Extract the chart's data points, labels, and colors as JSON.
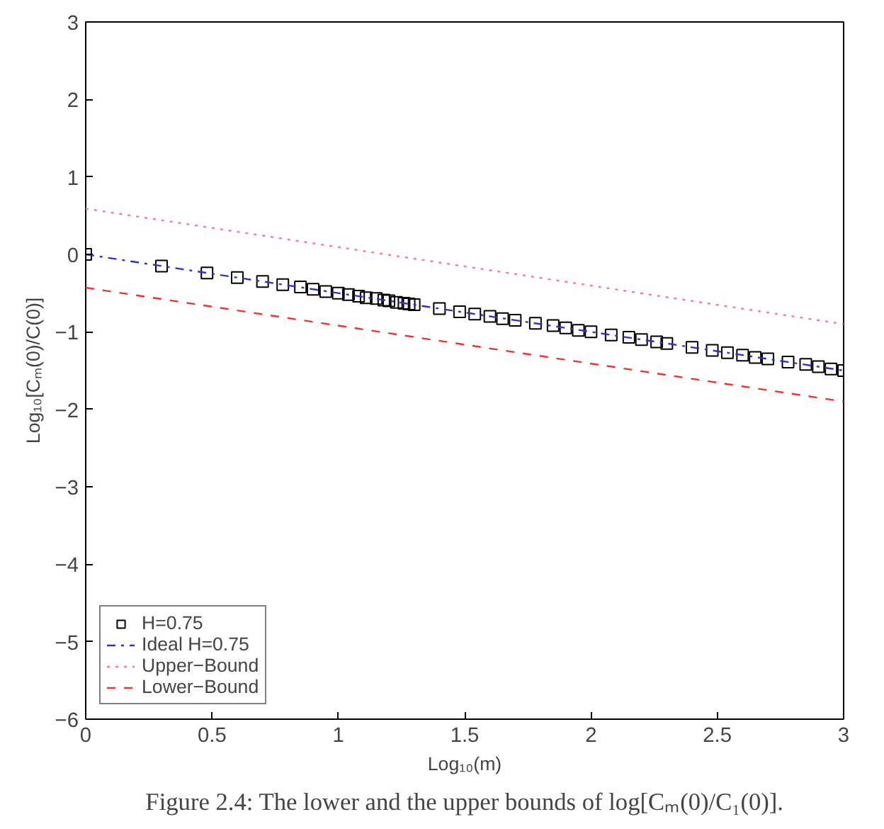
{
  "chart_data": {
    "type": "line",
    "xlabel": "Log₁₀(m)",
    "ylabel": "Log₁₀[Cₘ(0)/C(0)]",
    "annotations": [
      "Figure 2.4: The lower and the upper bounds of log[Cₘ(0)/C₁(0)]."
    ],
    "xlim": [
      0,
      3
    ],
    "ylim": [
      -6,
      3
    ],
    "xticks": [
      0,
      0.5,
      1,
      1.5,
      2,
      2.5,
      3
    ],
    "yticks": [
      -6,
      -5,
      -4,
      -3,
      -2,
      -1,
      0,
      1,
      2,
      3
    ],
    "grid": false,
    "legend": "bottom left",
    "series": [
      {
        "name": "H=0.75",
        "type": "scatter",
        "marker": "square",
        "color": "#000000",
        "x": [
          0,
          0.3,
          0.48,
          0.6,
          0.7,
          0.78,
          0.85,
          0.9,
          0.95,
          1,
          1.04,
          1.08,
          1.11,
          1.15,
          1.18,
          1.2,
          1.23,
          1.26,
          1.28,
          1.3,
          1.4,
          1.48,
          1.54,
          1.6,
          1.65,
          1.7,
          1.78,
          1.85,
          1.9,
          1.95,
          2,
          2.08,
          2.15,
          2.2,
          2.26,
          2.3,
          2.4,
          2.48,
          2.54,
          2.6,
          2.65,
          2.7,
          2.78,
          2.85,
          2.9,
          2.95,
          3
        ],
        "values": [
          0,
          -0.15,
          -0.24,
          -0.3,
          -0.35,
          -0.39,
          -0.42,
          -0.45,
          -0.48,
          -0.5,
          -0.52,
          -0.54,
          -0.56,
          -0.57,
          -0.59,
          -0.6,
          -0.62,
          -0.63,
          -0.64,
          -0.65,
          -0.7,
          -0.74,
          -0.77,
          -0.8,
          -0.83,
          -0.85,
          -0.89,
          -0.92,
          -0.95,
          -0.98,
          -1.0,
          -1.04,
          -1.07,
          -1.1,
          -1.13,
          -1.15,
          -1.2,
          -1.24,
          -1.27,
          -1.3,
          -1.33,
          -1.35,
          -1.39,
          -1.42,
          -1.45,
          -1.48,
          -1.5
        ]
      },
      {
        "name": "Ideal H=0.75",
        "line_style": "dashdot",
        "color": "#3333cc",
        "x": [
          0,
          3
        ],
        "values": [
          0,
          -1.5
        ]
      },
      {
        "name": "Upper−Bound",
        "line_style": "dotted",
        "color": "#ff7799",
        "x": [
          0,
          3
        ],
        "values": [
          0.59,
          -0.9
        ]
      },
      {
        "name": "Lower−Bound",
        "line_style": "dashed",
        "color": "#ee3333",
        "x": [
          0,
          3
        ],
        "values": [
          -0.43,
          -1.9
        ]
      }
    ]
  }
}
